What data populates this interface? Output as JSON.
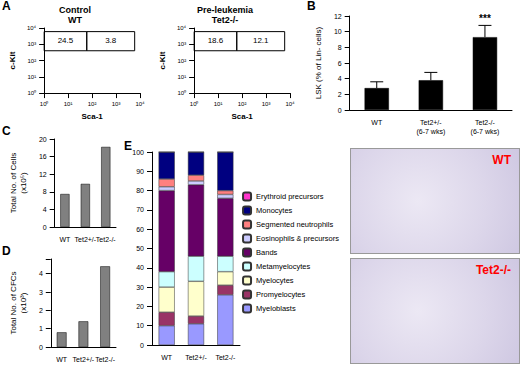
{
  "chart_data": [
    {
      "type": "scatter",
      "title": "Control",
      "subtitle": "WT",
      "annotations": [
        {
          "text": "A"
        }
      ],
      "x_label": "Sca-1",
      "y_label": "c-Kit",
      "log": true,
      "xlim": [
        1,
        10000
      ],
      "ylim": [
        1,
        10000
      ],
      "xticks": [
        {
          "value": 1,
          "label": "10⁰"
        },
        {
          "value": 10,
          "label": "10¹"
        },
        {
          "value": 100,
          "label": "10²"
        },
        {
          "value": 1000,
          "label": "10³"
        },
        {
          "value": 10000,
          "label": "10⁴"
        }
      ],
      "yticks": [
        {
          "value": 1,
          "label": "10⁰"
        },
        {
          "value": 10,
          "label": "10¹"
        },
        {
          "value": 100,
          "label": "10²"
        },
        {
          "value": 1000,
          "label": "10³"
        },
        {
          "value": 10000,
          "label": "10⁴"
        }
      ],
      "gates": [
        {
          "value": 24.5,
          "x": [
            1,
            60
          ],
          "y": [
            400,
            6000
          ]
        },
        {
          "value": 3.8,
          "x": [
            60,
            6000
          ],
          "y": [
            400,
            6000
          ]
        }
      ]
    },
    {
      "type": "scatter",
      "title": "Pre-leukemia",
      "subtitle": "Tet2-/-",
      "x_label": "Sca-1",
      "y_label": "c-Kit",
      "log": true,
      "xlim": [
        1,
        10000
      ],
      "ylim": [
        1,
        10000
      ],
      "xticks": [
        {
          "value": 1,
          "label": "10⁰"
        },
        {
          "value": 10,
          "label": "10¹"
        },
        {
          "value": 100,
          "label": "10²"
        },
        {
          "value": 1000,
          "label": "10³"
        },
        {
          "value": 10000,
          "label": "10⁴"
        }
      ],
      "yticks": [
        {
          "value": 1,
          "label": "10⁰"
        },
        {
          "value": 10,
          "label": "10¹"
        },
        {
          "value": 100,
          "label": "10²"
        },
        {
          "value": 1000,
          "label": "10³"
        },
        {
          "value": 10000,
          "label": "10⁴"
        }
      ],
      "gates": [
        {
          "value": 18.6,
          "x": [
            1,
            60
          ],
          "y": [
            400,
            6000
          ]
        },
        {
          "value": 12.1,
          "x": [
            60,
            6000
          ],
          "y": [
            400,
            6000
          ]
        }
      ]
    },
    {
      "type": "bar",
      "annotations": [
        {
          "text": "B"
        },
        {
          "text": "***",
          "category": "Tet2-/-\n(6-7 wks)"
        }
      ],
      "y_label": "LSK (% of Lin- cells)",
      "categories": [
        "WT",
        "Tet2+/-\n(6-7 wks)",
        "Tet2-/-\n(6-7 wks)"
      ],
      "values": [
        2.8,
        3.8,
        9.3
      ],
      "errors": [
        0.8,
        1.0,
        1.5
      ],
      "color": "#000000",
      "ylim": [
        0,
        12
      ],
      "yticks": [
        0,
        2,
        4,
        6,
        8,
        10,
        12
      ]
    },
    {
      "type": "bar",
      "annotations": [
        {
          "text": "C"
        }
      ],
      "y_label": "Total No. of Cells\n(x10⁵)",
      "categories": [
        "WT",
        "Tet2+/-",
        "Tet2-/-"
      ],
      "values": [
        7.5,
        9.8,
        18.2
      ],
      "color": "#808080",
      "ylim": [
        0,
        20
      ],
      "yticks": [
        0,
        4,
        8,
        12,
        16,
        20
      ]
    },
    {
      "type": "bar",
      "annotations": [
        {
          "text": "D"
        }
      ],
      "y_label": "Total No. of CFCs\n(x10³)",
      "categories": [
        "WT",
        "Tet2+/-",
        "Tet2-/-"
      ],
      "values": [
        0.8,
        1.4,
        4.4
      ],
      "color": "#808080",
      "ylim": [
        0,
        4.8
      ],
      "yticks": [
        0,
        1,
        2,
        3,
        4
      ]
    },
    {
      "type": "bar",
      "stacked": true,
      "legend": "right",
      "annotations": [
        {
          "text": "E"
        }
      ],
      "categories": [
        "WT",
        "Tet2+/-",
        "Tet2-/-"
      ],
      "ylim": [
        0,
        100
      ],
      "yticks": [
        0,
        10,
        20,
        30,
        40,
        50,
        60,
        70,
        80,
        90,
        100
      ],
      "series": [
        {
          "name": "Myeloblasts",
          "color": "#9999ff",
          "values": [
            10,
            11,
            26
          ]
        },
        {
          "name": "Promyelocytes",
          "color": "#993366",
          "values": [
            7,
            4,
            5
          ]
        },
        {
          "name": "Myelocytes",
          "color": "#ffffcc",
          "values": [
            13,
            18,
            7
          ]
        },
        {
          "name": "Metamyelocytes",
          "color": "#ccffff",
          "values": [
            8,
            13,
            8
          ]
        },
        {
          "name": "Bands",
          "color": "#660066",
          "values": [
            42,
            37,
            30
          ]
        },
        {
          "name": "Eosinophils & precursors",
          "color": "#ccccff",
          "values": [
            2,
            2,
            2
          ]
        },
        {
          "name": "Segmented neutrophils",
          "color": "#ff8080",
          "values": [
            4,
            3,
            2
          ]
        },
        {
          "name": "Monocytes",
          "color": "#000080",
          "values": [
            14,
            12,
            20
          ]
        },
        {
          "name": "Erythroid precursors",
          "color": "#ff33cc",
          "values": [
            0,
            0,
            0
          ]
        }
      ]
    }
  ],
  "images": [
    {
      "label": "WT",
      "color": "#ff0000"
    },
    {
      "label": "Tet2-/-",
      "color": "#ff0000"
    }
  ]
}
